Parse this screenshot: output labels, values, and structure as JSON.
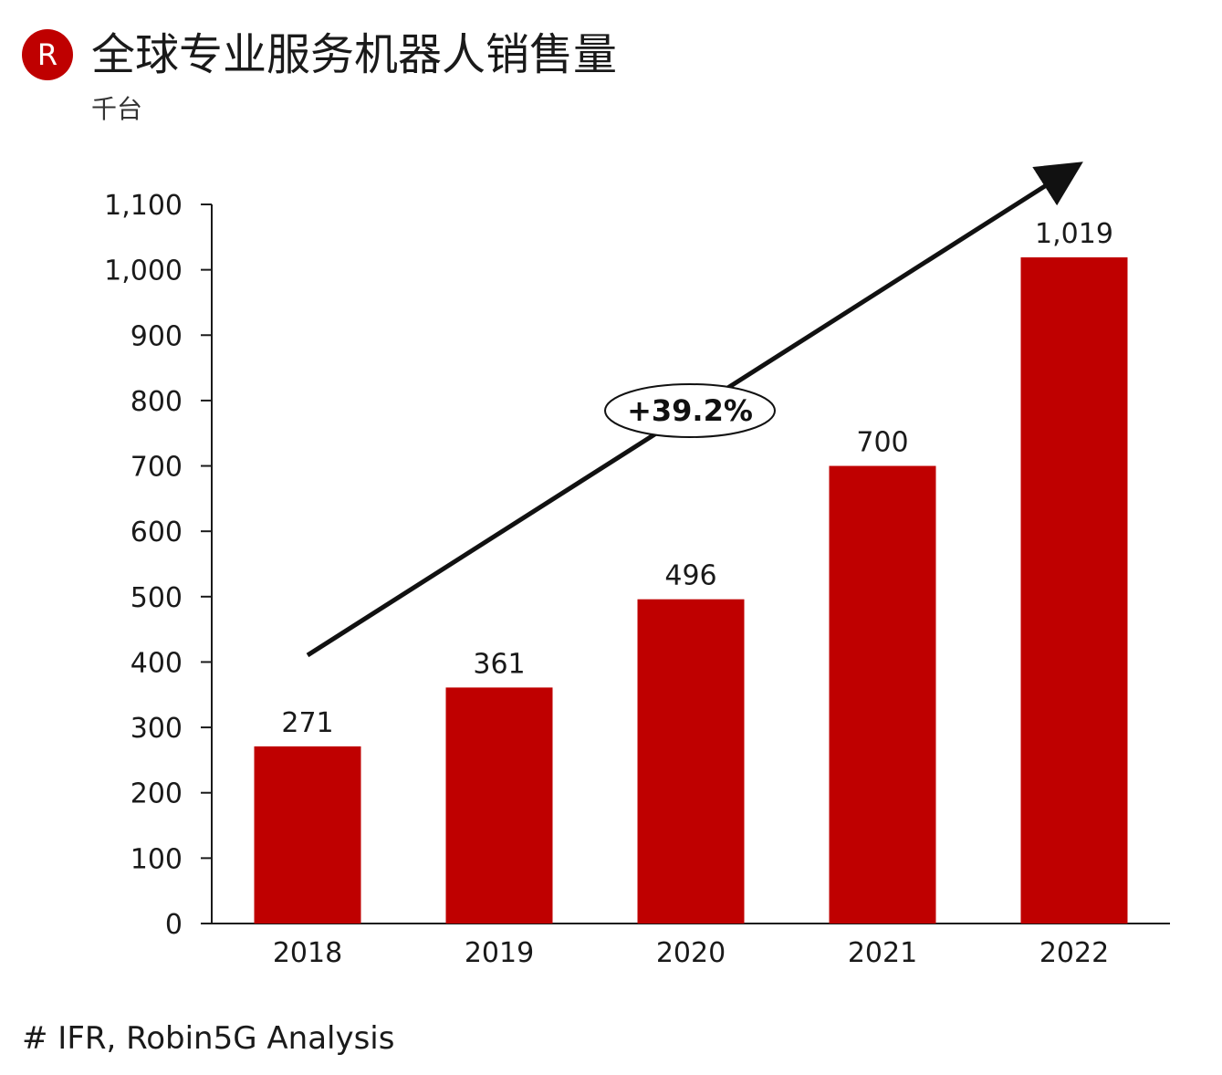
{
  "header": {
    "logo_letter": "R",
    "title": "全球专业服务机器人销售量",
    "subtitle": "千台"
  },
  "source": "# IFR, Robin5G Analysis",
  "colors": {
    "bar": "#bf0000",
    "logo": "#bf0000",
    "axis": "#1a1a1a"
  },
  "chart_data": {
    "type": "bar",
    "title": "全球专业服务机器人销售量",
    "ylabel": "千台",
    "xlabel": "",
    "categories": [
      "2018",
      "2019",
      "2020",
      "2021",
      "2022"
    ],
    "values": [
      271,
      361,
      496,
      700,
      1019
    ],
    "value_labels": [
      "271",
      "361",
      "496",
      "700",
      "1,019"
    ],
    "ylim": [
      0,
      1100
    ],
    "yticks": [
      0,
      100,
      200,
      300,
      400,
      500,
      600,
      700,
      800,
      900,
      1000,
      1100
    ],
    "ytick_labels": [
      "0",
      "100",
      "200",
      "300",
      "400",
      "500",
      "600",
      "700",
      "800",
      "900",
      "1,000",
      "1,100"
    ],
    "grid": false,
    "annotation": {
      "text": "+39.2%",
      "kind": "trend-arrow"
    }
  }
}
